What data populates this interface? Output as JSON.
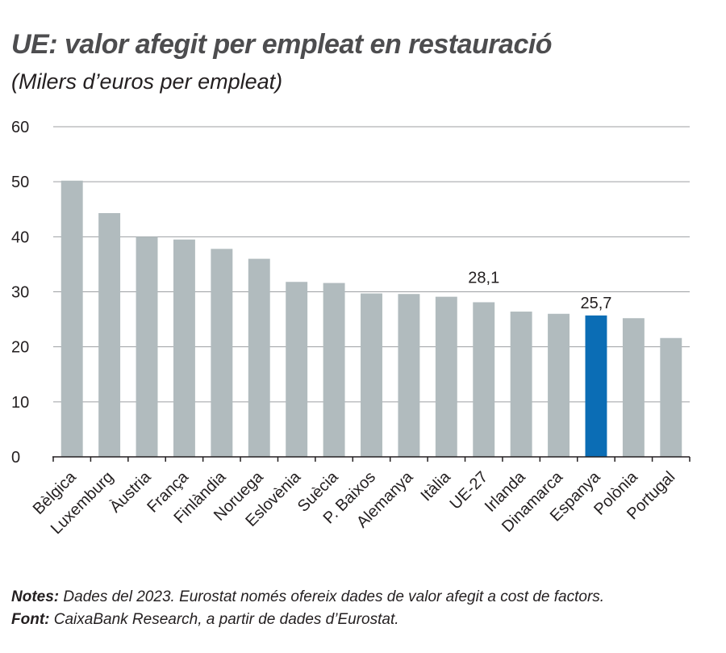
{
  "header": {
    "title": "UE: valor afegit per empleat en restauració",
    "subtitle": "(Milers d’euros per empleat)"
  },
  "footer": {
    "notes_label": "Notes:",
    "notes_text": " Dades del 2023. Eurostat només ofereix dades de valor afegit a cost de factors.",
    "source_label": "Font:",
    "source_text": " CaixaBank Research, a partir de dades d’Eurostat."
  },
  "colors": {
    "bar": "#b1bbbe",
    "highlight": "#0b6db5",
    "grid": "#9d9fa2",
    "axis": "#231f20"
  },
  "chart_data": {
    "type": "bar",
    "categories": [
      "Bèlgica",
      "Luxemburg",
      "Àustria",
      "França",
      "Finlàndia",
      "Noruega",
      "Eslovènia",
      "Suècia",
      "P. Baixos",
      "Alemanya",
      "Itàlia",
      "UE-27",
      "Irlanda",
      "Dinamarca",
      "Espanya",
      "Polònia",
      "Portugal"
    ],
    "values": [
      50.2,
      44.3,
      40.0,
      39.5,
      37.8,
      36.0,
      31.8,
      31.6,
      29.7,
      29.6,
      29.1,
      28.1,
      26.4,
      26.0,
      25.7,
      25.2,
      21.6
    ],
    "highlight": "Espanya",
    "data_labels": [
      {
        "category": "UE-27",
        "text": "28,1"
      },
      {
        "category": "Espanya",
        "text": "25,7"
      }
    ],
    "ylim": [
      0,
      60
    ],
    "yticks": [
      0,
      10,
      20,
      30,
      40,
      50,
      60
    ],
    "grid": true,
    "xlabel": "",
    "ylabel": ""
  }
}
